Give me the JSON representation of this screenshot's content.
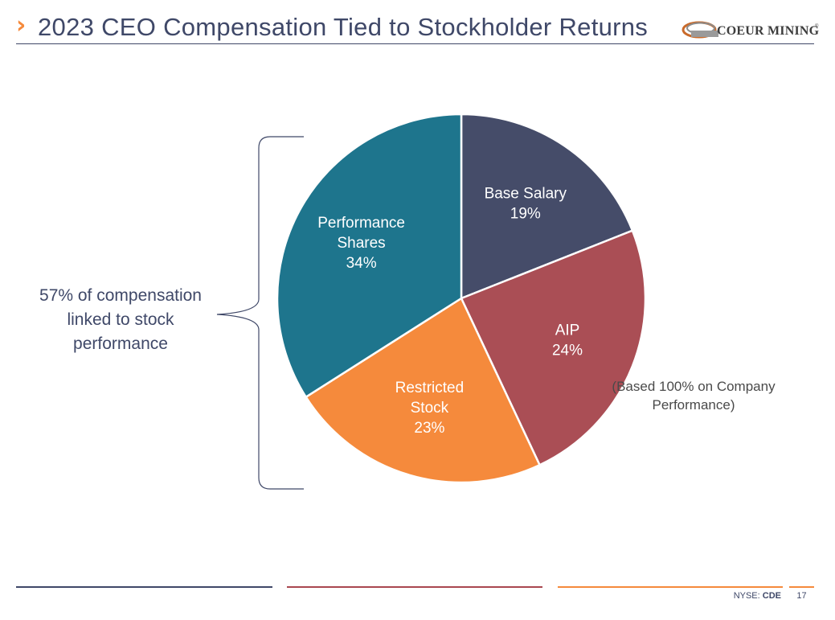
{
  "header": {
    "chevron": "›",
    "title": "2023 CEO Compensation Tied to Stockholder Returns",
    "logo_text": "COEUR MINING",
    "logo_reg": "®"
  },
  "chart_data": {
    "type": "pie",
    "title": "",
    "slices": [
      {
        "name_lines": [
          "Base Salary"
        ],
        "value": 19,
        "label": "19%",
        "color": "#454C69"
      },
      {
        "name_lines": [
          "AIP"
        ],
        "value": 24,
        "label": "24%",
        "color": "#AA4E55"
      },
      {
        "name_lines": [
          "Restricted",
          "Stock"
        ],
        "value": 23,
        "label": "23%",
        "color": "#F58A3C"
      },
      {
        "name_lines": [
          "Performance",
          "Shares"
        ],
        "value": 34,
        "label": "34%",
        "color": "#1E758D"
      }
    ],
    "start": "12 o'clock",
    "direction": "clockwise"
  },
  "annotations": {
    "stock_note": "57% of compensation linked to stock performance",
    "aip_note": "(Based 100% on Company Performance)"
  },
  "footer": {
    "exchange": "NYSE:",
    "ticker": "CDE",
    "page_number": "17"
  }
}
